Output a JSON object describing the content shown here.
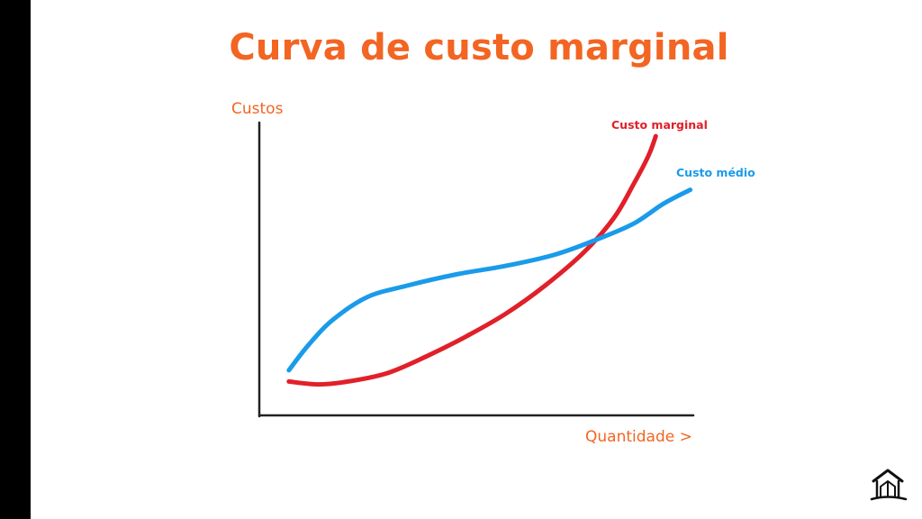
{
  "slide": {
    "title": "Curva de custo marginal"
  },
  "colors": {
    "accent": "#f26522",
    "marginal": "#e0202a",
    "average": "#1a9bea",
    "axis": "#222222",
    "sidebar": "#000000"
  },
  "logo": {
    "icon": "house-logo-icon"
  },
  "chart_data": {
    "type": "line",
    "title": "Curva de custo marginal",
    "xlabel": "Quantidade >",
    "ylabel": "Custos",
    "xlim": [
      0,
      100
    ],
    "ylim": [
      0,
      100
    ],
    "grid": false,
    "legend": "labels at line ends",
    "series": [
      {
        "name": "Custo marginal",
        "color": "#e0202a",
        "x": [
          6,
          12,
          18,
          26,
          34,
          42,
          50,
          58,
          66,
          72,
          76,
          79,
          80.5
        ],
        "y": [
          12,
          11,
          12,
          15,
          21,
          28,
          36,
          46,
          58,
          70,
          82,
          92,
          99
        ]
      },
      {
        "name": "Custo médio",
        "color": "#1a9bea",
        "x": [
          6,
          10,
          15,
          22,
          30,
          40,
          50,
          60,
          68,
          76,
          82,
          87.5
        ],
        "y": [
          16,
          25,
          34,
          42,
          46,
          50,
          53,
          57,
          62,
          68,
          75,
          80
        ]
      }
    ]
  }
}
